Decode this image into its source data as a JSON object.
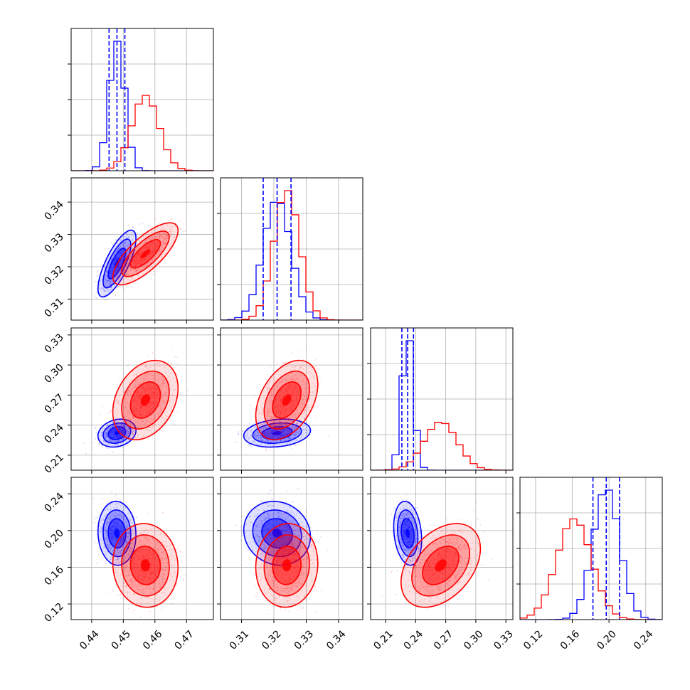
{
  "chart_data": {
    "type": "corner",
    "grid": true,
    "series": [
      {
        "color": "#0000ff",
        "center": [
          0.448,
          0.321,
          0.232,
          0.197
        ],
        "sd": [
          0.0025,
          0.0043,
          0.0058,
          0.0145
        ]
      },
      {
        "color": "#ff0000",
        "center": [
          0.457,
          0.324,
          0.265,
          0.162
        ],
        "sd": [
          0.0043,
          0.004,
          0.0165,
          0.019
        ]
      }
    ],
    "correlations": {
      "0-1": [
        0.75,
        0.75
      ],
      "0-2": [
        0.2,
        0.3
      ],
      "1-2": [
        0.2,
        0.4
      ],
      "0-3": [
        -0.05,
        -0.05
      ],
      "1-3": [
        -0.1,
        0.05
      ],
      "2-3": [
        -0.2,
        0.4
      ]
    },
    "quantile_lines": {
      "color": "#0000ff",
      "style": "dashed"
    },
    "axes": [
      {
        "range": [
          0.4335,
          0.4785
        ],
        "ticks": [
          0.44,
          0.45,
          0.46,
          0.47
        ],
        "tick_labels": [
          "0.44",
          "0.45",
          "0.46",
          "0.47"
        ]
      },
      {
        "range": [
          0.3035,
          0.3475
        ],
        "ticks": [
          0.31,
          0.32,
          0.33,
          0.34
        ],
        "tick_labels": [
          "0.31",
          "0.32",
          "0.33",
          "0.34"
        ]
      },
      {
        "range": [
          0.195,
          0.337
        ],
        "ticks": [
          0.21,
          0.24,
          0.27,
          0.3,
          0.33
        ],
        "tick_labels": [
          "0.21",
          "0.24",
          "0.27",
          "0.30",
          "0.33"
        ]
      },
      {
        "range": [
          0.103,
          0.258
        ],
        "ticks": [
          0.12,
          0.16,
          0.2,
          0.24
        ],
        "tick_labels": [
          "0.12",
          "0.16",
          "0.20",
          "0.24"
        ]
      }
    ]
  }
}
